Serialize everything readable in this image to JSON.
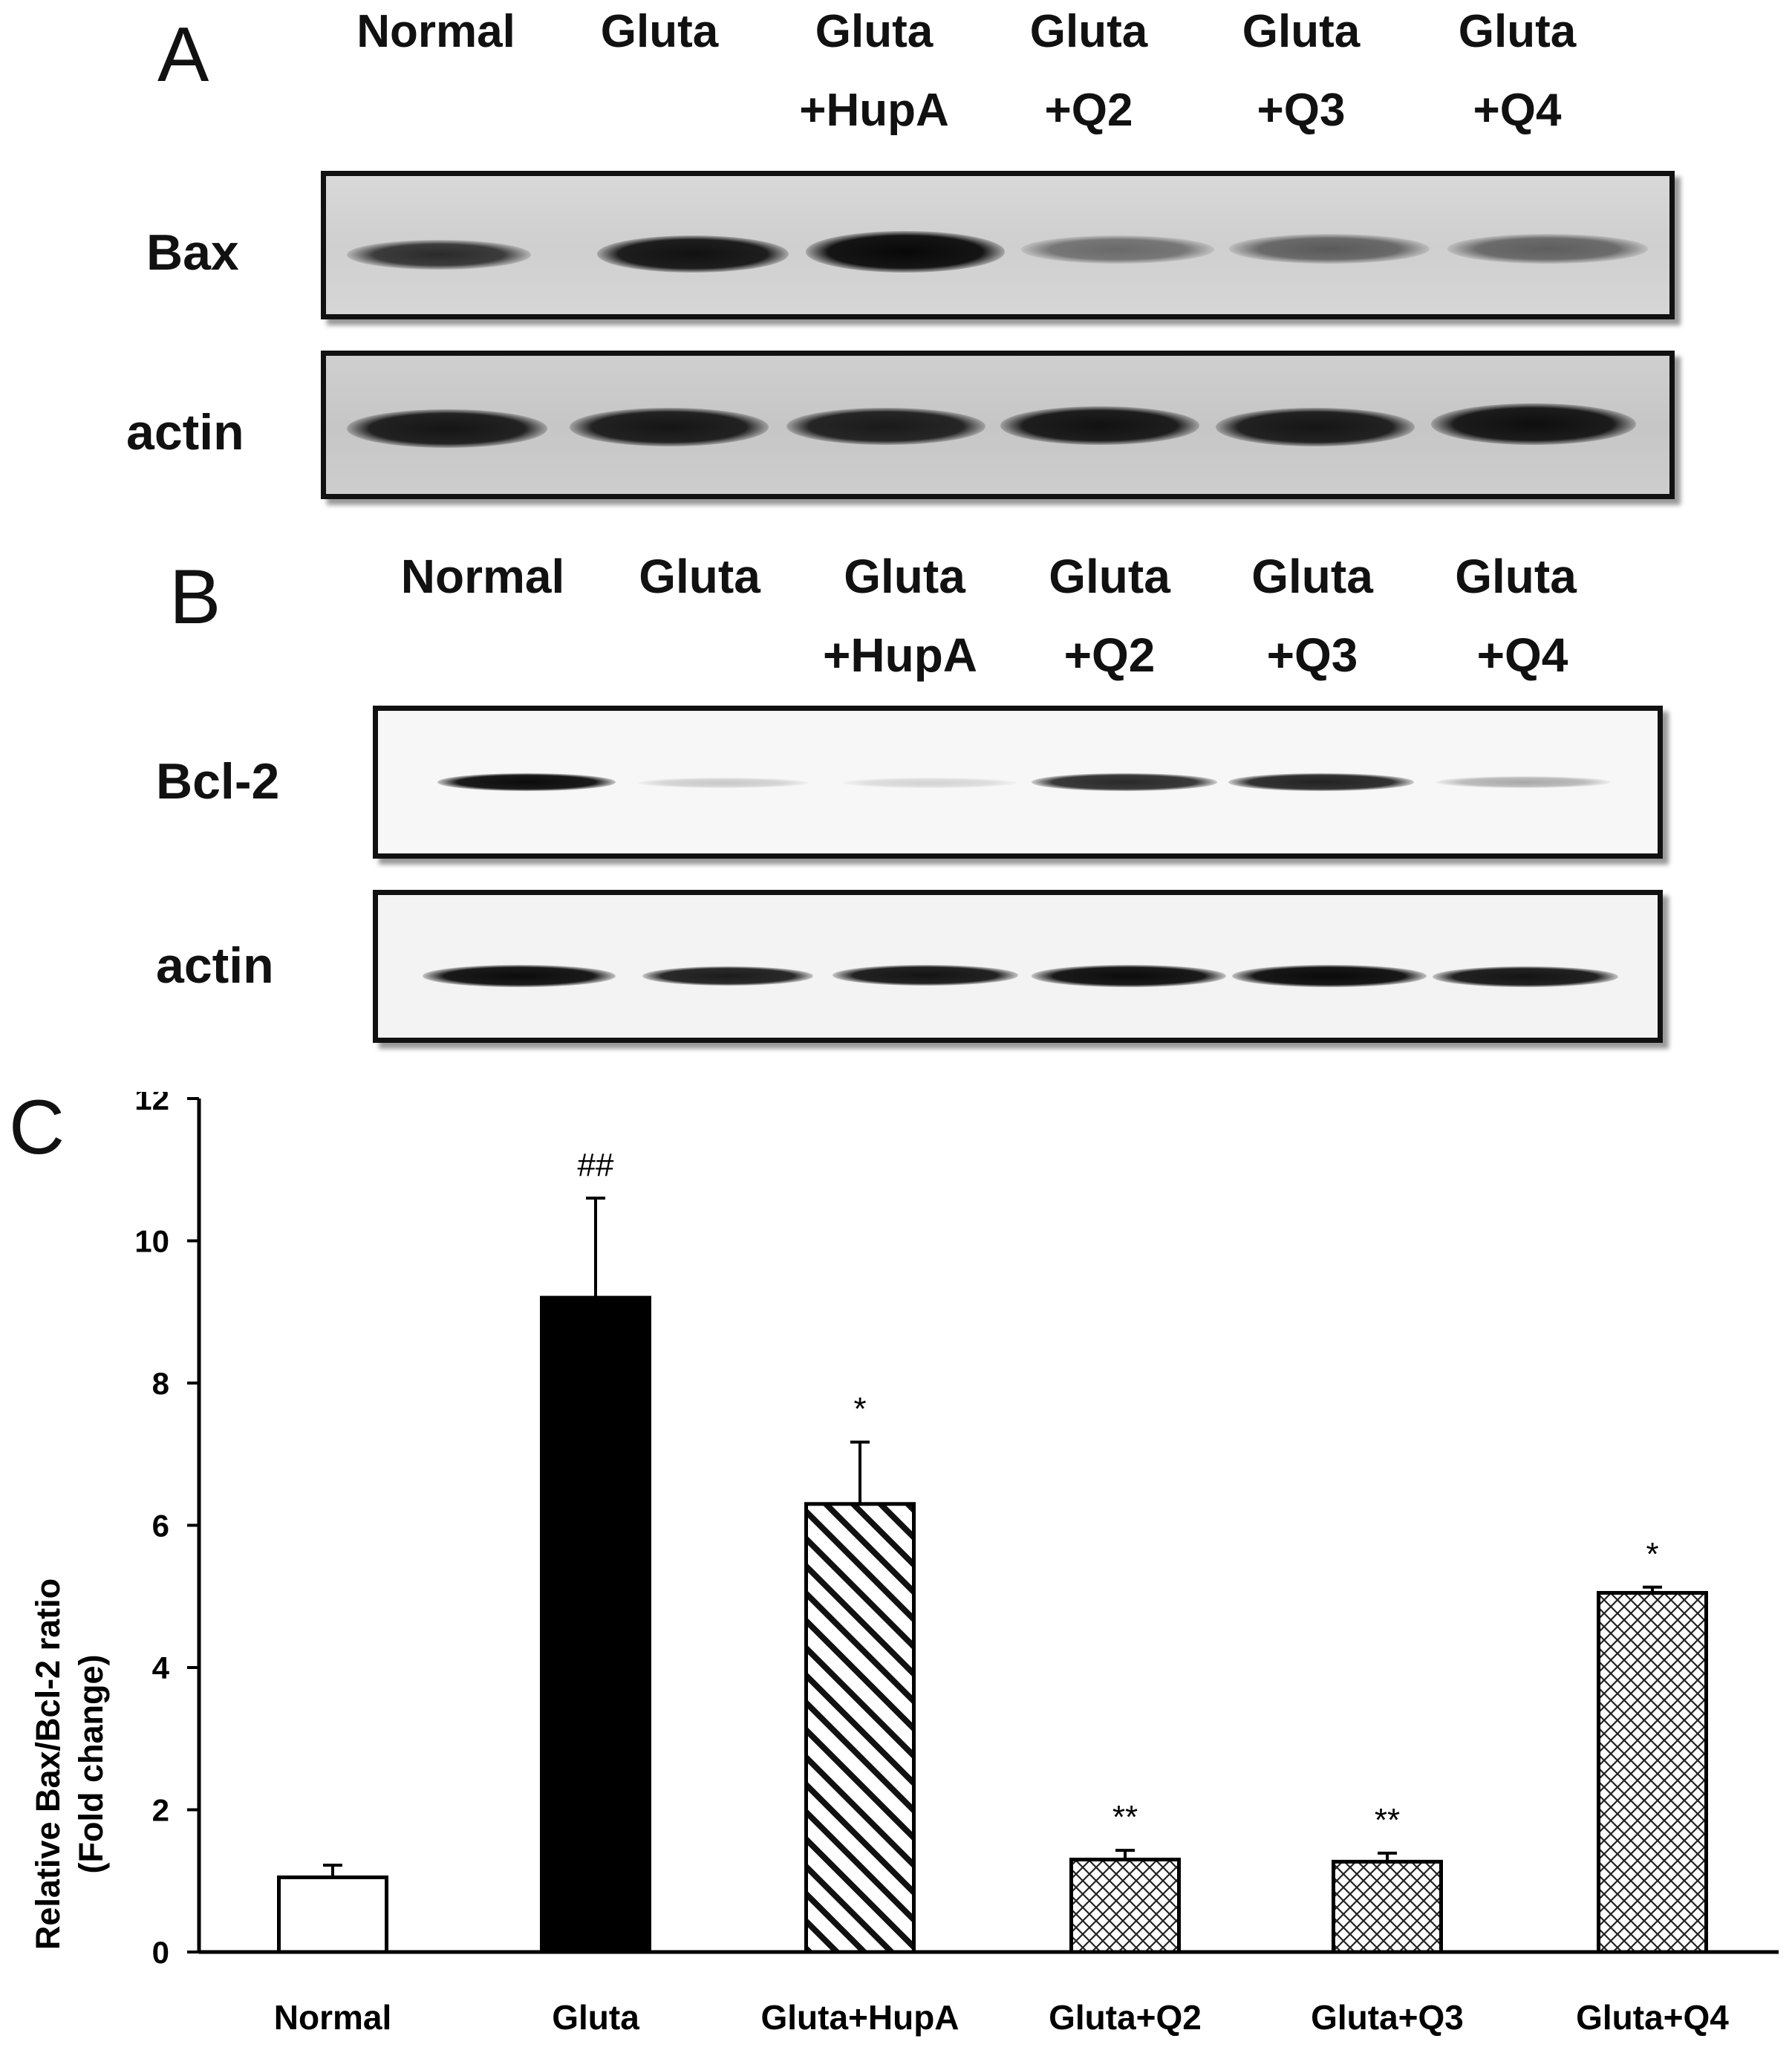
{
  "panel_a": {
    "letter": "A",
    "lanes": [
      {
        "line1": "Normal",
        "line2": ""
      },
      {
        "line1": "Gluta",
        "line2": ""
      },
      {
        "line1": "Gluta",
        "line2": "+HupA"
      },
      {
        "line1": "Gluta",
        "line2": "+Q2"
      },
      {
        "line1": "Gluta",
        "line2": "+Q3"
      },
      {
        "line1": "Gluta",
        "line2": "+Q4"
      }
    ],
    "rows": [
      "Bax",
      "actin"
    ]
  },
  "panel_b": {
    "letter": "B",
    "lanes": [
      {
        "line1": "Normal",
        "line2": ""
      },
      {
        "line1": "Gluta",
        "line2": ""
      },
      {
        "line1": "Gluta",
        "line2": "+HupA"
      },
      {
        "line1": "Gluta",
        "line2": "+Q2"
      },
      {
        "line1": "Gluta",
        "line2": "+Q3"
      },
      {
        "line1": "Gluta",
        "line2": "+Q4"
      }
    ],
    "rows": [
      "Bcl-2",
      "actin"
    ]
  },
  "panel_c": {
    "letter": "C"
  },
  "chart_data": {
    "type": "bar",
    "categories": [
      "Normal",
      "Gluta",
      "Gluta+HupA",
      "Gluta+Q2",
      "Gluta+Q3",
      "Gluta+Q4"
    ],
    "values": [
      1.05,
      9.2,
      6.3,
      1.3,
      1.27,
      5.05
    ],
    "error_bars": [
      0.17,
      1.4,
      0.87,
      0.13,
      0.12,
      0.08
    ],
    "annotations": [
      "",
      "##",
      "*",
      "**",
      "**",
      "*"
    ],
    "bar_fills": [
      "white",
      "black",
      "diagonal-hatch",
      "crosshatch",
      "crosshatch",
      "crosshatch"
    ],
    "ylabel_line1": "Relative Bax/Bcl-2 ratio",
    "ylabel_line2": "(Fold change)",
    "xlabel": "",
    "ylim": [
      0,
      12
    ],
    "yticks": [
      "0",
      "2",
      "4",
      "6",
      "8",
      "10",
      "12"
    ],
    "grid": false,
    "legend": "none"
  }
}
